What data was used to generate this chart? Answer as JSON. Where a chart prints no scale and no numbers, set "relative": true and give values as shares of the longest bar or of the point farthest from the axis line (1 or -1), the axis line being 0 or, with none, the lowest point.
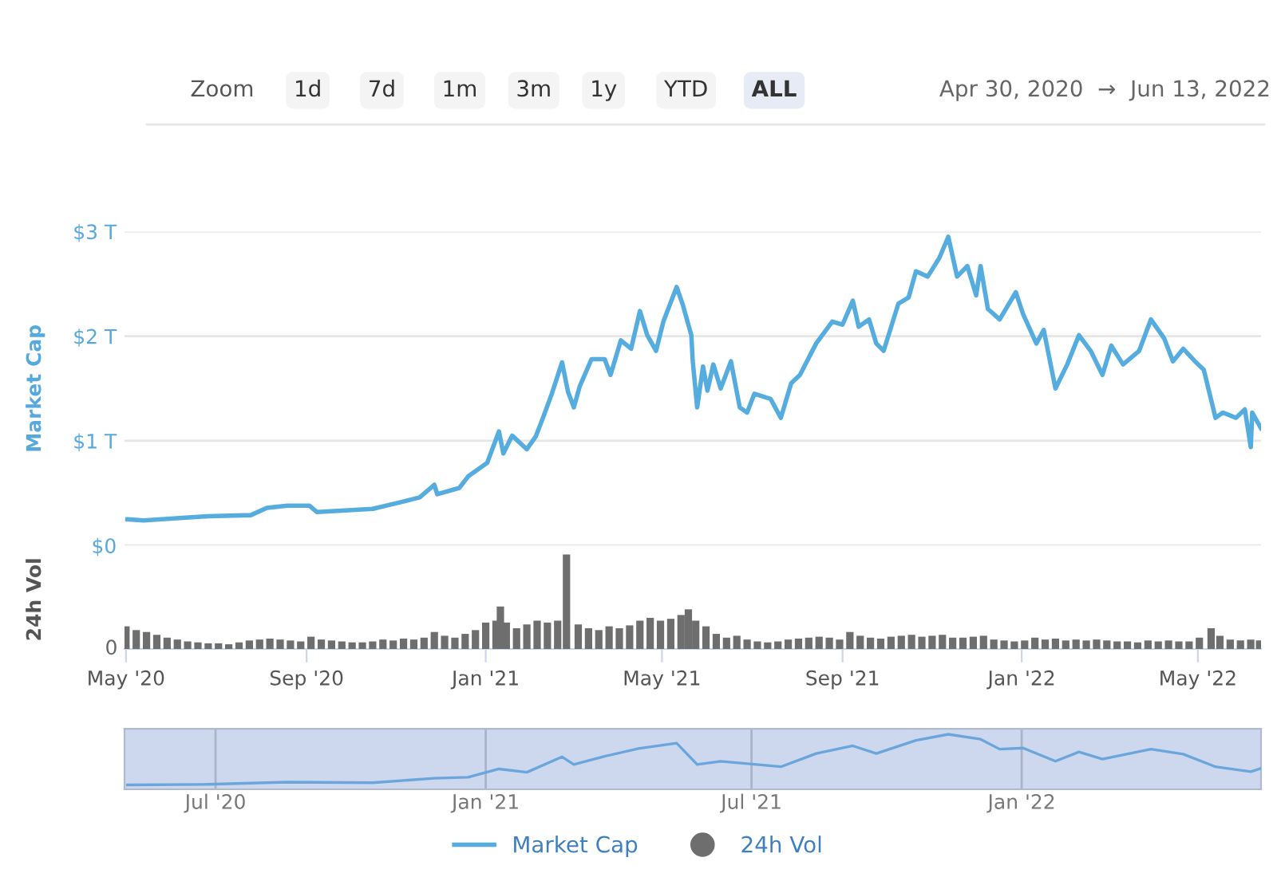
{
  "chart_data": [
    {
      "type": "line",
      "ylabel": "Market Cap",
      "tick_labels": "y",
      "grid": "y",
      "legend": "bottom",
      "annotations": [
        "Zoom",
        "1d",
        "7d",
        "1m",
        "3m",
        "1y",
        "YTD",
        "ALL",
        "Apr 30, 2020  →  Jun 13, 2022"
      ],
      "xlim": [
        "2020-04-30",
        "2022-06-13"
      ],
      "ylim": [
        0,
        3
      ],
      "yticks": [
        {
          "value": 0,
          "label": "$0"
        },
        {
          "value": 1,
          "label": "$1 T"
        },
        {
          "value": 2,
          "label": "$2 T"
        },
        {
          "value": 3,
          "label": "$3 T"
        }
      ],
      "series": [
        {
          "name": "Market Cap",
          "color": "#55acdf",
          "x": [
            "2020-05-02",
            "2020-05-13",
            "2020-06-26",
            "2020-07-25",
            "2020-08-05",
            "2020-08-19",
            "2020-09-03",
            "2020-09-08",
            "2020-10-16",
            "2020-11-03",
            "2020-11-17",
            "2020-11-27",
            "2020-11-29",
            "2020-12-14",
            "2020-12-20",
            "2021-01-02",
            "2021-01-10",
            "2021-01-13",
            "2021-01-19",
            "2021-01-29",
            "2021-02-04",
            "2021-02-09",
            "2021-02-15",
            "2021-02-22",
            "2021-02-26",
            "2021-03-02",
            "2021-03-06",
            "2021-03-14",
            "2021-03-23",
            "2021-03-27",
            "2021-04-03",
            "2021-04-10",
            "2021-04-15",
            "2021-04-16",
            "2021-04-21",
            "2021-04-27",
            "2021-05-02",
            "2021-05-11",
            "2021-05-15",
            "2021-05-21",
            "2021-05-22",
            "2021-05-25",
            "2021-05-29",
            "2021-06-01",
            "2021-06-05",
            "2021-06-10",
            "2021-06-17",
            "2021-06-23",
            "2021-06-28",
            "2021-07-03",
            "2021-07-14",
            "2021-07-21",
            "2021-07-28",
            "2021-08-03",
            "2021-08-14",
            "2021-08-25",
            "2021-09-01",
            "2021-09-08",
            "2021-09-12",
            "2021-09-19",
            "2021-09-24",
            "2021-09-29",
            "2021-10-09",
            "2021-10-16",
            "2021-10-21",
            "2021-10-29",
            "2021-11-06",
            "2021-11-12",
            "2021-11-18",
            "2021-11-25",
            "2021-12-01",
            "2021-12-04",
            "2021-12-09",
            "2021-12-17",
            "2021-12-28",
            "2022-01-02",
            "2022-01-11",
            "2022-01-16",
            "2022-01-24",
            "2022-02-01",
            "2022-02-09",
            "2022-02-17",
            "2022-02-25",
            "2022-03-03",
            "2022-03-11",
            "2022-03-22",
            "2022-03-30",
            "2022-04-08",
            "2022-04-14",
            "2022-04-21",
            "2022-04-29",
            "2022-05-05",
            "2022-05-13",
            "2022-05-18",
            "2022-05-27",
            "2022-06-02",
            "2022-06-06",
            "2022-06-07",
            "2022-06-13"
          ],
          "values": [
            0.25,
            0.24,
            0.28,
            0.29,
            0.36,
            0.38,
            0.38,
            0.32,
            0.35,
            0.41,
            0.46,
            0.58,
            0.49,
            0.55,
            0.66,
            0.79,
            1.09,
            0.88,
            1.05,
            0.92,
            1.04,
            1.22,
            1.45,
            1.75,
            1.47,
            1.32,
            1.52,
            1.78,
            1.78,
            1.63,
            1.96,
            1.88,
            2.18,
            2.24,
            2.01,
            1.86,
            2.14,
            2.47,
            2.31,
            2.01,
            1.76,
            1.32,
            1.71,
            1.48,
            1.73,
            1.5,
            1.76,
            1.32,
            1.27,
            1.45,
            1.4,
            1.22,
            1.55,
            1.63,
            1.93,
            2.14,
            2.11,
            2.34,
            2.09,
            2.16,
            1.93,
            1.86,
            2.31,
            2.37,
            2.62,
            2.57,
            2.75,
            2.95,
            2.57,
            2.67,
            2.39,
            2.67,
            2.26,
            2.16,
            2.42,
            2.21,
            1.93,
            2.06,
            1.5,
            1.73,
            2.01,
            1.86,
            1.63,
            1.91,
            1.73,
            1.86,
            2.16,
            1.98,
            1.76,
            1.88,
            1.76,
            1.68,
            1.22,
            1.27,
            1.22,
            1.3,
            0.94,
            1.27,
            1.12
          ]
        }
      ]
    },
    {
      "type": "bar",
      "ylabel": "24h Vol",
      "relative": true,
      "legend": "bottom",
      "annotations": [
        "0"
      ],
      "xlim": [
        "2020-04-30",
        "2022-06-13"
      ],
      "xticks": [
        {
          "value": "2020-05-01",
          "label": "May '20"
        },
        {
          "value": "2020-09-01",
          "label": "Sep '20"
        },
        {
          "value": "2021-01-01",
          "label": "Jan '21"
        },
        {
          "value": "2021-05-01",
          "label": "May '21"
        },
        {
          "value": "2021-09-01",
          "label": "Sep '21"
        },
        {
          "value": "2022-01-01",
          "label": "Jan '22"
        },
        {
          "value": "2022-05-01",
          "label": "May '22"
        }
      ],
      "series": [
        {
          "name": "24h Vol",
          "color": "#6e6e6e",
          "x": [
            "2020-05-01",
            "2020-05-08",
            "2020-05-15",
            "2020-05-22",
            "2020-05-29",
            "2020-06-05",
            "2020-06-12",
            "2020-06-19",
            "2020-06-26",
            "2020-07-03",
            "2020-07-10",
            "2020-07-17",
            "2020-07-24",
            "2020-07-31",
            "2020-08-07",
            "2020-08-14",
            "2020-08-21",
            "2020-08-28",
            "2020-09-04",
            "2020-09-11",
            "2020-09-18",
            "2020-09-25",
            "2020-10-02",
            "2020-10-09",
            "2020-10-16",
            "2020-10-23",
            "2020-10-30",
            "2020-11-06",
            "2020-11-13",
            "2020-11-20",
            "2020-11-27",
            "2020-12-04",
            "2020-12-11",
            "2020-12-18",
            "2020-12-25",
            "2021-01-01",
            "2021-01-08",
            "2021-01-11",
            "2021-01-15",
            "2021-01-22",
            "2021-01-29",
            "2021-02-05",
            "2021-02-12",
            "2021-02-19",
            "2021-02-25",
            "2021-03-05",
            "2021-03-12",
            "2021-03-19",
            "2021-03-26",
            "2021-04-02",
            "2021-04-09",
            "2021-04-16",
            "2021-04-23",
            "2021-04-30",
            "2021-05-07",
            "2021-05-14",
            "2021-05-19",
            "2021-05-24",
            "2021-05-31",
            "2021-06-07",
            "2021-06-14",
            "2021-06-21",
            "2021-06-28",
            "2021-07-05",
            "2021-07-12",
            "2021-07-19",
            "2021-07-26",
            "2021-08-02",
            "2021-08-09",
            "2021-08-16",
            "2021-08-23",
            "2021-08-30",
            "2021-09-06",
            "2021-09-13",
            "2021-09-20",
            "2021-09-27",
            "2021-10-04",
            "2021-10-11",
            "2021-10-18",
            "2021-10-25",
            "2021-11-01",
            "2021-11-08",
            "2021-11-15",
            "2021-11-22",
            "2021-11-29",
            "2021-12-06",
            "2021-12-13",
            "2021-12-20",
            "2021-12-27",
            "2022-01-03",
            "2022-01-10",
            "2022-01-17",
            "2022-01-24",
            "2022-01-31",
            "2022-02-07",
            "2022-02-14",
            "2022-02-21",
            "2022-02-28",
            "2022-03-07",
            "2022-03-14",
            "2022-03-21",
            "2022-03-28",
            "2022-04-04",
            "2022-04-11",
            "2022-04-18",
            "2022-04-25",
            "2022-05-02",
            "2022-05-10",
            "2022-05-16",
            "2022-05-23",
            "2022-05-30",
            "2022-06-06",
            "2022-06-12"
          ],
          "values": [
            0.24,
            0.2,
            0.18,
            0.15,
            0.12,
            0.1,
            0.08,
            0.07,
            0.06,
            0.06,
            0.05,
            0.07,
            0.09,
            0.1,
            0.11,
            0.1,
            0.09,
            0.08,
            0.13,
            0.1,
            0.09,
            0.08,
            0.07,
            0.07,
            0.08,
            0.1,
            0.09,
            0.11,
            0.1,
            0.12,
            0.18,
            0.14,
            0.12,
            0.16,
            0.2,
            0.28,
            0.3,
            0.45,
            0.28,
            0.22,
            0.26,
            0.3,
            0.28,
            0.3,
            1.0,
            0.26,
            0.22,
            0.2,
            0.24,
            0.22,
            0.25,
            0.3,
            0.33,
            0.3,
            0.32,
            0.36,
            0.42,
            0.3,
            0.24,
            0.16,
            0.12,
            0.14,
            0.1,
            0.08,
            0.07,
            0.08,
            0.1,
            0.11,
            0.12,
            0.13,
            0.12,
            0.1,
            0.18,
            0.14,
            0.12,
            0.11,
            0.13,
            0.14,
            0.15,
            0.13,
            0.14,
            0.15,
            0.12,
            0.12,
            0.13,
            0.14,
            0.1,
            0.09,
            0.08,
            0.09,
            0.12,
            0.1,
            0.11,
            0.09,
            0.1,
            0.09,
            0.1,
            0.09,
            0.08,
            0.08,
            0.07,
            0.09,
            0.08,
            0.09,
            0.08,
            0.08,
            0.12,
            0.22,
            0.14,
            0.1,
            0.09,
            0.1,
            0.09
          ]
        }
      ]
    },
    {
      "type": "line",
      "relative": true,
      "tick_labels": "x",
      "grid": "x",
      "xlim": [
        "2020-04-30",
        "2022-06-13"
      ],
      "xticks": [
        {
          "value": "2020-07-01",
          "label": "Jul '20"
        },
        {
          "value": "2021-01-01",
          "label": "Jan '21"
        },
        {
          "value": "2021-07-01",
          "label": "Jul '21"
        },
        {
          "value": "2022-01-01",
          "label": "Jan '22"
        }
      ],
      "series": [
        {
          "color": "#6aa6dc",
          "x": [
            "2020-05-02",
            "2020-06-26",
            "2020-08-19",
            "2020-10-16",
            "2020-11-27",
            "2020-12-20",
            "2021-01-10",
            "2021-01-29",
            "2021-02-22",
            "2021-03-02",
            "2021-03-23",
            "2021-04-15",
            "2021-05-11",
            "2021-05-25",
            "2021-06-10",
            "2021-07-21",
            "2021-08-14",
            "2021-09-08",
            "2021-09-24",
            "2021-10-21",
            "2021-11-12",
            "2021-12-04",
            "2021-12-17",
            "2022-01-02",
            "2022-01-24",
            "2022-02-09",
            "2022-02-25",
            "2022-03-30",
            "2022-04-21",
            "2022-05-13",
            "2022-06-06",
            "2022-06-13"
          ],
          "values": [
            0.08,
            0.09,
            0.13,
            0.12,
            0.2,
            0.22,
            0.37,
            0.31,
            0.59,
            0.45,
            0.6,
            0.74,
            0.84,
            0.45,
            0.51,
            0.41,
            0.65,
            0.79,
            0.65,
            0.89,
            1.0,
            0.91,
            0.73,
            0.75,
            0.51,
            0.68,
            0.55,
            0.73,
            0.64,
            0.41,
            0.32,
            0.38
          ]
        }
      ]
    }
  ]
}
